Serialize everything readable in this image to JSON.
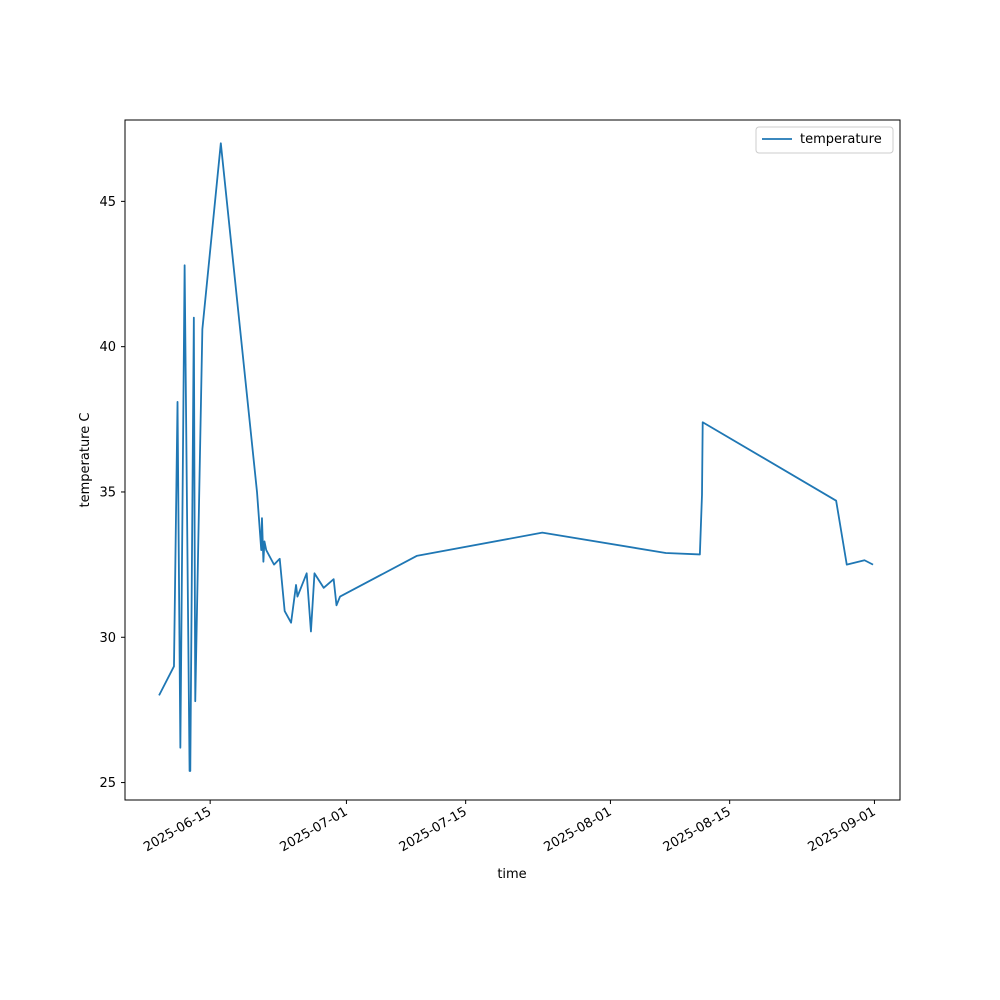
{
  "chart_data": {
    "type": "line",
    "xlabel": "time",
    "ylabel": "temperature C",
    "xlim": [
      "2025-06-05",
      "2025-09-04"
    ],
    "ylim": [
      24.4,
      47.8
    ],
    "yticks": [
      25,
      30,
      35,
      40,
      45
    ],
    "xticks": [
      "2025-06-15",
      "2025-07-01",
      "2025-07-15",
      "2025-08-01",
      "2025-08-15",
      "2025-09-01"
    ],
    "grid": false,
    "legend_position": "top-right",
    "series_color": "#1f77b4",
    "series": [
      {
        "name": "temperature",
        "points": [
          {
            "x": "2025-06-09 00:00",
            "y": 28.0
          },
          {
            "x": "2025-06-10 18:00",
            "y": 29.0
          },
          {
            "x": "2025-06-11 04:00",
            "y": 38.1
          },
          {
            "x": "2025-06-11 12:00",
            "y": 26.2
          },
          {
            "x": "2025-06-12 00:00",
            "y": 42.8
          },
          {
            "x": "2025-06-12 14:00",
            "y": 25.4
          },
          {
            "x": "2025-06-12 16:00",
            "y": 25.4
          },
          {
            "x": "2025-06-13 02:00",
            "y": 41.0
          },
          {
            "x": "2025-06-13 06:00",
            "y": 27.8
          },
          {
            "x": "2025-06-14 02:00",
            "y": 40.6
          },
          {
            "x": "2025-06-16 06:00",
            "y": 47.0
          },
          {
            "x": "2025-06-20 12:00",
            "y": 35.0
          },
          {
            "x": "2025-06-21 00:00",
            "y": 33.0
          },
          {
            "x": "2025-06-21 02:00",
            "y": 34.1
          },
          {
            "x": "2025-06-21 06:00",
            "y": 32.6
          },
          {
            "x": "2025-06-21 09:00",
            "y": 33.3
          },
          {
            "x": "2025-06-21 14:00",
            "y": 33.0
          },
          {
            "x": "2025-06-22 12:00",
            "y": 32.5
          },
          {
            "x": "2025-06-23 04:00",
            "y": 32.7
          },
          {
            "x": "2025-06-23 18:00",
            "y": 30.9
          },
          {
            "x": "2025-06-24 12:00",
            "y": 30.5
          },
          {
            "x": "2025-06-25 02:00",
            "y": 31.8
          },
          {
            "x": "2025-06-25 06:00",
            "y": 31.4
          },
          {
            "x": "2025-06-26 08:00",
            "y": 32.2
          },
          {
            "x": "2025-06-26 20:00",
            "y": 30.2
          },
          {
            "x": "2025-06-27 06:00",
            "y": 32.2
          },
          {
            "x": "2025-06-28 08:00",
            "y": 31.7
          },
          {
            "x": "2025-06-29 12:00",
            "y": 32.0
          },
          {
            "x": "2025-06-29 20:00",
            "y": 31.1
          },
          {
            "x": "2025-06-30 06:00",
            "y": 31.4
          },
          {
            "x": "2025-07-09 06:00",
            "y": 32.8
          },
          {
            "x": "2025-07-24 00:00",
            "y": 33.6
          },
          {
            "x": "2025-08-07 12:00",
            "y": 32.9
          },
          {
            "x": "2025-08-11 12:00",
            "y": 32.85
          },
          {
            "x": "2025-08-11 18:00",
            "y": 34.9
          },
          {
            "x": "2025-08-11 20:00",
            "y": 37.4
          },
          {
            "x": "2025-08-27 12:00",
            "y": 34.7
          },
          {
            "x": "2025-08-28 18:00",
            "y": 32.5
          },
          {
            "x": "2025-08-30 20:00",
            "y": 32.65
          },
          {
            "x": "2025-08-31 20:00",
            "y": 32.5
          }
        ]
      }
    ]
  }
}
